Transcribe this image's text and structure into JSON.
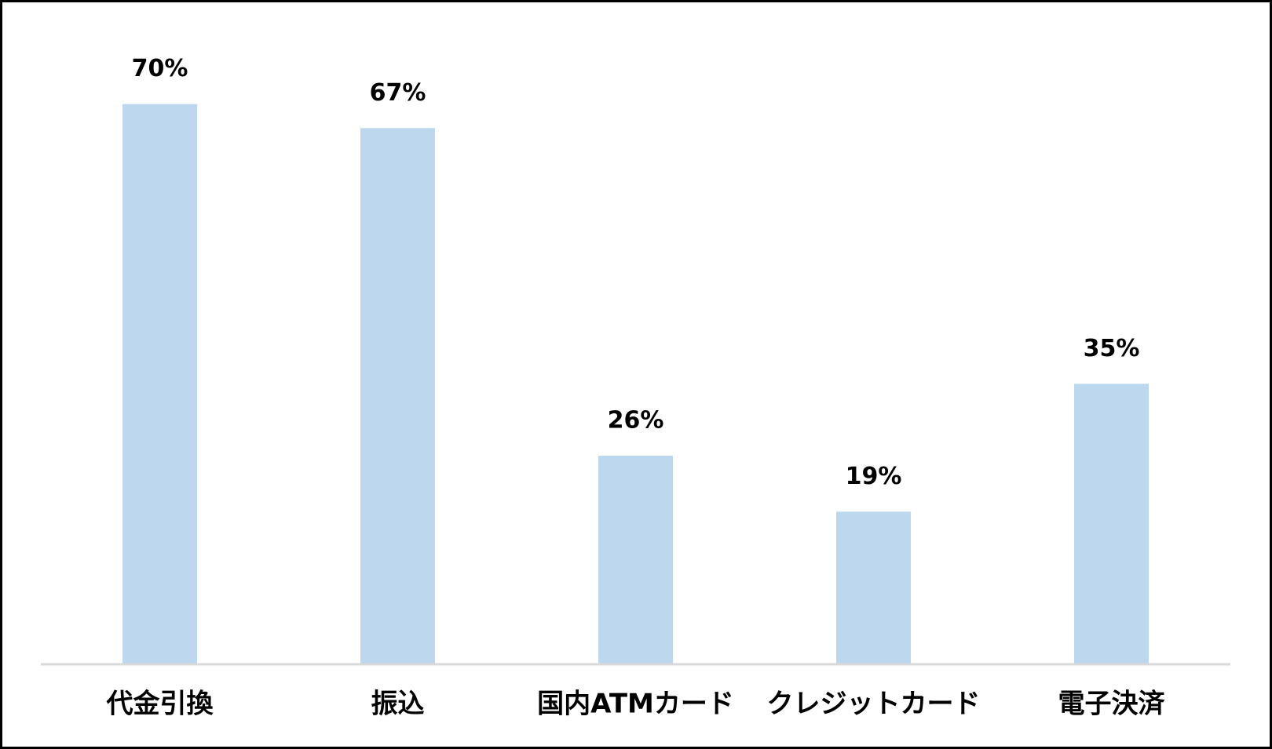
{
  "chart_data": {
    "type": "bar",
    "categories": [
      "代金引換",
      "振込",
      "国内ATMカード",
      "クレジットカード",
      "電子決済"
    ],
    "values": [
      70,
      67,
      26,
      19,
      35
    ],
    "value_labels": [
      "70%",
      "67%",
      "26%",
      "19%",
      "35%"
    ],
    "color": "#bdd7ee"
  }
}
